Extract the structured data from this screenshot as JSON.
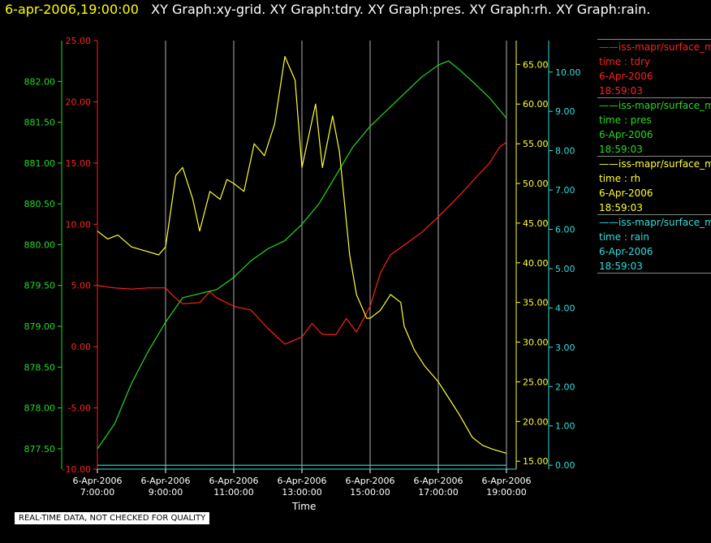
{
  "header": {
    "timestamp": "6-apr-2006,19:00:00",
    "titles": "XY Graph:xy-grid.  XY Graph:tdry.  XY Graph:pres.  XY Graph:rh.  XY Graph:rain."
  },
  "legend": [
    {
      "name": "——iss-mapr/surface_m",
      "field": "time : tdry",
      "date": "6-Apr-2006",
      "time": "18:59:03",
      "color": "#ff2020"
    },
    {
      "name": "——iss-mapr/surface_m",
      "field": "time : pres",
      "date": "6-Apr-2006",
      "time": "18:59:03",
      "color": "#22dd22"
    },
    {
      "name": "——iss-mapr/surface_m",
      "field": "time : rh",
      "date": "6-Apr-2006",
      "time": "18:59:03",
      "color": "#ffff33"
    },
    {
      "name": "——iss-mapr/surface_m",
      "field": "time : rain",
      "date": "6-Apr-2006",
      "time": "18:59:03",
      "color": "#33dddd"
    }
  ],
  "note": "REAL-TIME DATA, NOT CHECKED FOR QUALITY",
  "chart_data": {
    "type": "line",
    "xlabel": "Time",
    "x_ticks": [
      {
        "date": "6-Apr-2006",
        "time": "7:00:00",
        "hour": 7
      },
      {
        "date": "6-Apr-2006",
        "time": "9:00:00",
        "hour": 9
      },
      {
        "date": "6-Apr-2006",
        "time": "11:00:00",
        "hour": 11
      },
      {
        "date": "6-Apr-2006",
        "time": "13:00:00",
        "hour": 13
      },
      {
        "date": "6-Apr-2006",
        "time": "15:00:00",
        "hour": 15
      },
      {
        "date": "6-Apr-2006",
        "time": "17:00:00",
        "hour": 17
      },
      {
        "date": "6-Apr-2006",
        "time": "19:00:00",
        "hour": 19
      }
    ],
    "xlim": [
      7,
      19
    ],
    "grid": "vertical",
    "axes": {
      "tdry": {
        "color": "#ff2020",
        "range": [
          -10,
          25
        ],
        "ticks": [
          "-10.00",
          "-5.00",
          "0.00",
          "5.00",
          "10.00",
          "15.00",
          "20.00",
          "25.00"
        ]
      },
      "pres": {
        "color": "#22dd22",
        "range": [
          877.25,
          882.5
        ],
        "ticks": [
          "877.50",
          "878.00",
          "878.50",
          "879.00",
          "879.50",
          "880.00",
          "880.50",
          "881.00",
          "881.50",
          "882.00"
        ]
      },
      "rh": {
        "color": "#ffff33",
        "range": [
          14,
          68
        ],
        "ticks": [
          "15.00",
          "20.00",
          "25.00",
          "30.00",
          "35.00",
          "40.00",
          "45.00",
          "50.00",
          "55.00",
          "60.00",
          "65.00"
        ]
      },
      "rain": {
        "color": "#33dddd",
        "range": [
          -0.1,
          10.8
        ],
        "ticks": [
          "0.00",
          "1.00",
          "2.00",
          "3.00",
          "4.00",
          "5.00",
          "6.00",
          "7.00",
          "8.00",
          "9.00",
          "10.00"
        ]
      }
    },
    "series": [
      {
        "name": "tdry",
        "axis": "tdry",
        "x": [
          7,
          7.5,
          8,
          8.5,
          9,
          9.2,
          9.5,
          10,
          10.3,
          10.5,
          11,
          11.5,
          12,
          12.5,
          13,
          13.3,
          13.6,
          14,
          14.3,
          14.6,
          15,
          15.3,
          15.6,
          16,
          16.5,
          17,
          17.5,
          18,
          18.5,
          18.8,
          19
        ],
        "y": [
          5,
          4.8,
          4.7,
          4.8,
          4.8,
          4.2,
          3.5,
          3.6,
          4.5,
          4.0,
          3.3,
          3.0,
          1.5,
          0.2,
          0.8,
          1.9,
          1.0,
          1.0,
          2.3,
          1.2,
          3.3,
          6.0,
          7.5,
          8.3,
          9.3,
          10.6,
          12.0,
          13.5,
          15.0,
          16.3,
          16.7
        ]
      },
      {
        "name": "pres",
        "axis": "pres",
        "x": [
          7,
          7.5,
          8,
          8.5,
          9,
          9.5,
          10,
          10.5,
          11,
          11.5,
          12,
          12.5,
          13,
          13.5,
          14,
          14.5,
          15,
          15.5,
          16,
          16.5,
          17,
          17.3,
          17.6,
          18,
          18.5,
          19
        ],
        "y": [
          877.5,
          877.8,
          878.3,
          878.7,
          879.05,
          879.35,
          879.4,
          879.45,
          879.6,
          879.8,
          879.95,
          880.05,
          880.25,
          880.5,
          880.85,
          881.2,
          881.45,
          881.65,
          881.85,
          882.05,
          882.2,
          882.25,
          882.15,
          882.0,
          881.8,
          881.55
        ]
      },
      {
        "name": "rh",
        "axis": "rh",
        "x": [
          7,
          7.3,
          7.6,
          8,
          8.4,
          8.8,
          9,
          9.3,
          9.5,
          9.8,
          10,
          10.3,
          10.6,
          10.8,
          11,
          11.3,
          11.6,
          11.9,
          12.2,
          12.5,
          12.8,
          13,
          13.2,
          13.4,
          13.6,
          13.9,
          14.1,
          14.4,
          14.6,
          14.9,
          15,
          15.3,
          15.6,
          15.9,
          16,
          16.3,
          16.6,
          17,
          17.3,
          17.6,
          18,
          18.3,
          18.6,
          19
        ],
        "y": [
          44,
          43,
          43.5,
          42,
          41.5,
          41,
          42,
          51,
          52,
          48,
          44,
          49,
          48,
          50.5,
          50,
          49,
          55,
          53.5,
          57.5,
          66,
          63,
          52,
          56,
          60,
          52,
          58.5,
          54,
          41,
          36,
          33,
          33,
          34,
          36,
          35,
          32,
          29,
          27,
          25,
          23,
          21,
          18,
          17,
          16.5,
          16
        ]
      },
      {
        "name": "rain",
        "axis": "rain",
        "x": [
          7,
          19
        ],
        "y": [
          0,
          0
        ]
      }
    ]
  }
}
